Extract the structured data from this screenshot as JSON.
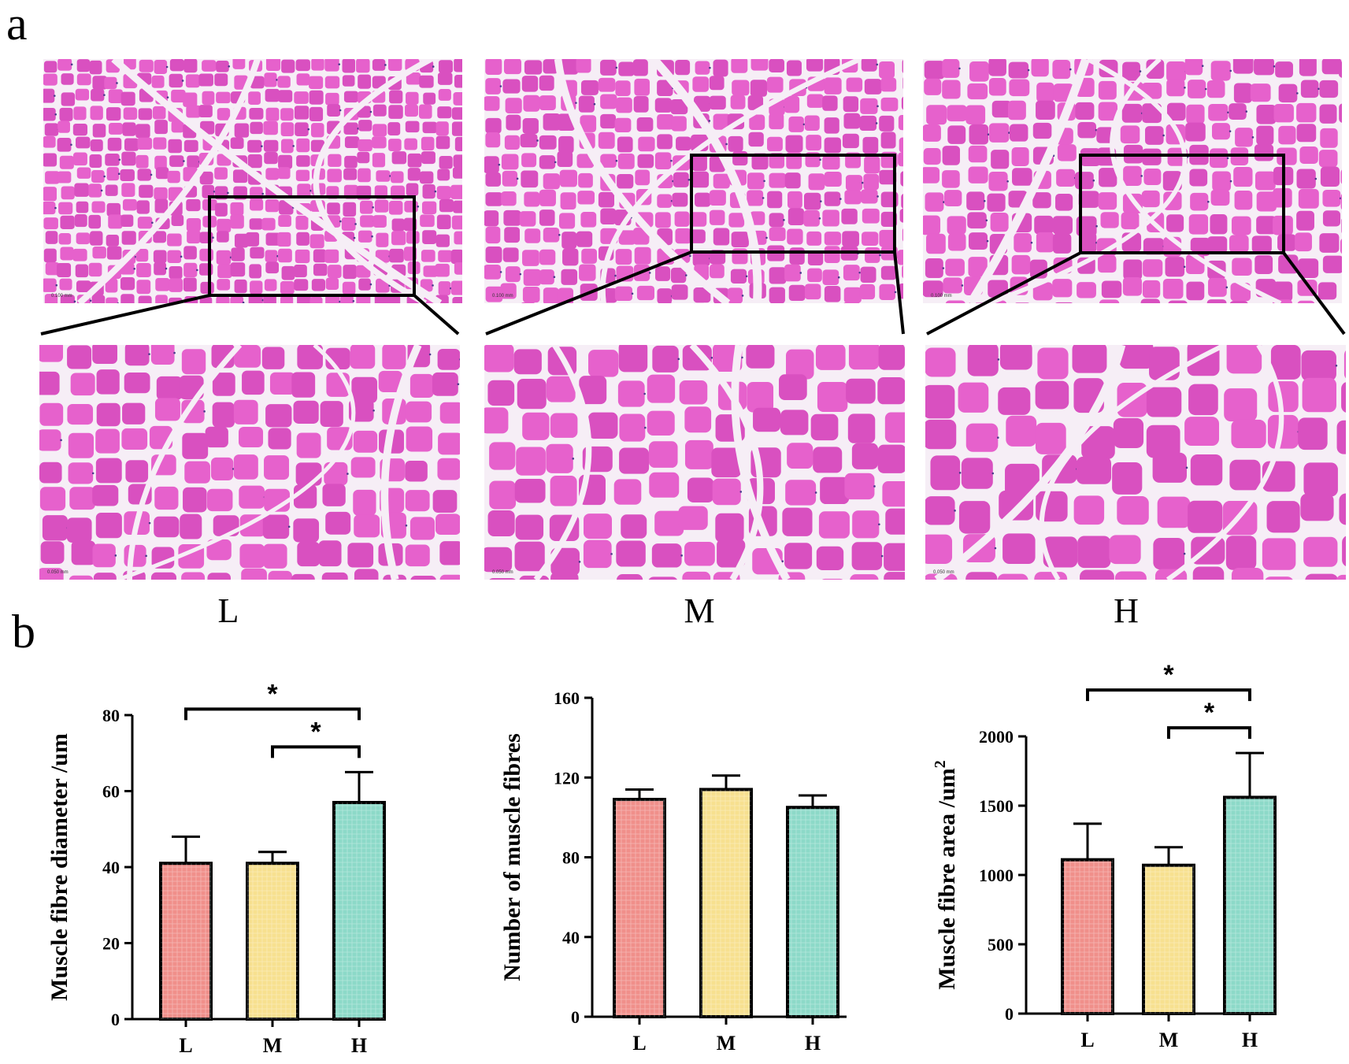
{
  "panel_letters": {
    "a": "a",
    "b": "b"
  },
  "micrographs": {
    "groups": [
      "L",
      "M",
      "H"
    ],
    "overview_scale_text": "0.100 mm",
    "zoom_scale_text": "0.050 mm",
    "colors": {
      "fibre": "#e661cc",
      "fibre_alt": "#d950c0",
      "tissue": "#f6eef6",
      "nucleus": "#4a3a8c",
      "box": "#000000"
    }
  },
  "colors": {
    "L": "#f08f8a",
    "M": "#f7e08f",
    "H": "#8cd9c8",
    "axis": "#000000"
  },
  "chart_data": [
    {
      "type": "bar",
      "categories": [
        "L",
        "M",
        "H"
      ],
      "values": [
        41,
        41,
        57
      ],
      "errors": [
        7,
        3,
        8
      ],
      "ylabel": "Muscle fibre diameter /um",
      "ylim": [
        0,
        80
      ],
      "yticks": [
        0,
        20,
        40,
        60,
        80
      ],
      "significance": [
        {
          "from": "L",
          "to": "H",
          "label": "*"
        },
        {
          "from": "M",
          "to": "H",
          "label": "*"
        }
      ]
    },
    {
      "type": "bar",
      "categories": [
        "L",
        "M",
        "H"
      ],
      "values": [
        109,
        114,
        105
      ],
      "errors": [
        5,
        7,
        6
      ],
      "ylabel": "Number of muscle fibres",
      "ylim": [
        0,
        160
      ],
      "yticks": [
        0,
        40,
        80,
        120,
        160
      ],
      "significance": []
    },
    {
      "type": "bar",
      "categories": [
        "L",
        "M",
        "H"
      ],
      "values": [
        1110,
        1070,
        1560
      ],
      "errors": [
        260,
        130,
        320
      ],
      "ylabel": "Muscle fibre area /um",
      "ylabel_superscript": "2",
      "ylim": [
        0,
        2000
      ],
      "yticks": [
        0,
        500,
        1000,
        1500,
        2000
      ],
      "significance": [
        {
          "from": "L",
          "to": "H",
          "label": "*"
        },
        {
          "from": "M",
          "to": "H",
          "label": "*"
        }
      ]
    }
  ]
}
